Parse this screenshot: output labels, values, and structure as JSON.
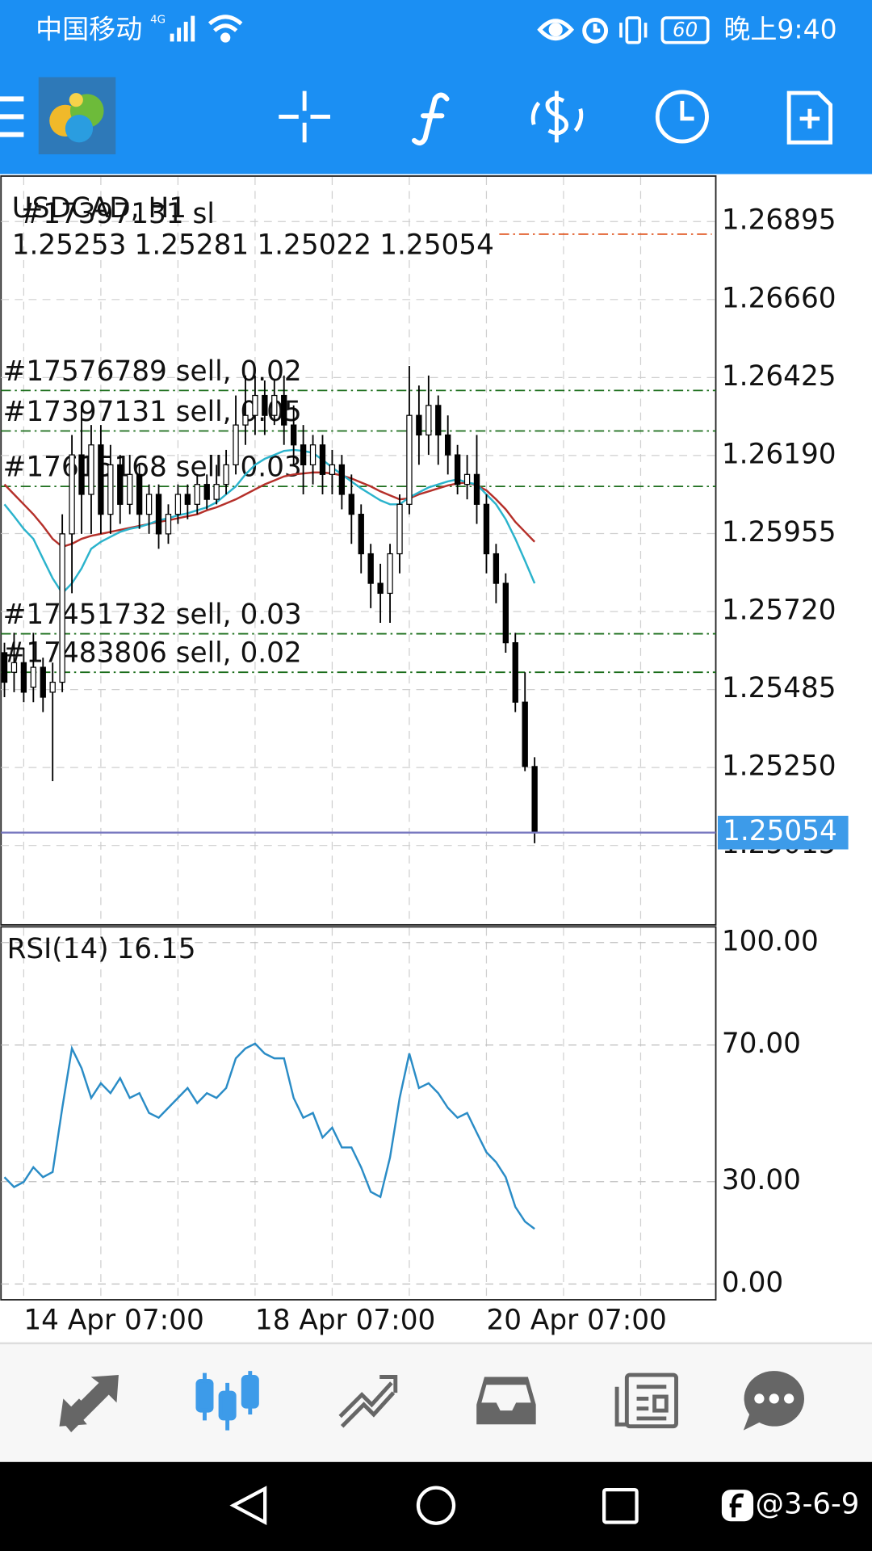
{
  "status_bar": {
    "carrier": "中国移动",
    "network": "4G",
    "battery": "60",
    "time": "晚上9:40"
  },
  "chart_data": [
    {
      "type": "candlestick",
      "title": "USDCAD, H1",
      "categories": [
        null,
        null,
        "14 Apr 07:00",
        null,
        null,
        null,
        null,
        null,
        null,
        null,
        null,
        null,
        null,
        null,
        null,
        null,
        null,
        null,
        null,
        null,
        null,
        null,
        null,
        null,
        null,
        null,
        "18 Apr 07:00",
        null,
        null,
        null,
        null,
        null,
        null,
        null,
        null,
        null,
        null,
        null,
        null,
        null,
        null,
        null,
        null,
        null,
        null,
        null,
        null,
        null,
        null,
        null,
        "20 Apr 07:00",
        null,
        null,
        null,
        null,
        null
      ],
      "open": [
        1.25596,
        1.25537,
        1.25566,
        1.25492,
        1.25552,
        1.25477,
        1.25507,
        1.25954,
        1.26192,
        1.26073,
        1.26222,
        1.26013,
        1.26162,
        1.26043,
        1.26133,
        1.26013,
        1.26073,
        1.25954,
        1.26013,
        1.26073,
        1.26043,
        1.26103,
        1.26058,
        1.26103,
        1.26162,
        1.26282,
        1.26311,
        1.26371,
        1.26311,
        1.26371,
        1.26282,
        1.26222,
        1.26162,
        1.26222,
        1.26133,
        1.26162,
        1.26073,
        1.26013,
        1.25894,
        1.25805,
        1.25775,
        1.25894,
        1.26043,
        1.26311,
        1.26252,
        1.26341,
        1.26252,
        1.26192,
        1.26103,
        1.26133,
        1.26043,
        1.25894,
        1.25805,
        1.25626,
        1.25447,
        1.25253
      ],
      "high": [
        1.25626,
        1.25656,
        1.25611,
        1.25656,
        1.25581,
        1.25566,
        1.26013,
        1.26252,
        1.26341,
        1.26282,
        1.26282,
        1.26222,
        1.26192,
        1.26192,
        1.26162,
        1.26103,
        1.26103,
        1.26043,
        1.26103,
        1.26103,
        1.26133,
        1.26133,
        1.26162,
        1.26207,
        1.26371,
        1.26431,
        1.26431,
        1.26416,
        1.26416,
        1.26431,
        1.26341,
        1.26282,
        1.26252,
        1.26252,
        1.26207,
        1.26192,
        1.26133,
        1.26043,
        1.25924,
        1.25864,
        1.25924,
        1.26073,
        1.2646,
        1.26401,
        1.26431,
        1.26371,
        1.26311,
        1.26222,
        1.26192,
        1.26252,
        1.26073,
        1.25924,
        1.25835,
        1.25656,
        1.25537,
        1.25281
      ],
      "low": [
        1.25462,
        1.25477,
        1.25447,
        1.25447,
        1.25417,
        1.25209,
        1.25477,
        1.25775,
        1.25954,
        1.25954,
        1.25954,
        1.25954,
        1.25984,
        1.26013,
        1.25969,
        1.25954,
        1.25909,
        1.25924,
        1.25984,
        1.25998,
        1.26013,
        1.26028,
        1.26043,
        1.26073,
        1.26133,
        1.26222,
        1.26252,
        1.26252,
        1.26282,
        1.26222,
        1.26162,
        1.26073,
        1.26103,
        1.26073,
        1.26073,
        1.26028,
        1.25924,
        1.25835,
        1.2573,
        1.25686,
        1.25686,
        1.25835,
        1.26013,
        1.26162,
        1.26192,
        1.26162,
        1.26133,
        1.26073,
        1.26058,
        1.25984,
        1.25835,
        1.25745,
        1.25596,
        1.25417,
        1.25239,
        1.25022
      ],
      "close": [
        1.25507,
        1.25566,
        1.25477,
        1.25552,
        1.25462,
        1.25507,
        1.25954,
        1.26192,
        1.26073,
        1.26222,
        1.26013,
        1.26162,
        1.26043,
        1.26133,
        1.26013,
        1.26073,
        1.25954,
        1.26013,
        1.26073,
        1.26043,
        1.26103,
        1.26058,
        1.26103,
        1.26162,
        1.26282,
        1.26311,
        1.26371,
        1.26311,
        1.26371,
        1.26282,
        1.26222,
        1.26162,
        1.26222,
        1.26133,
        1.26162,
        1.26073,
        1.26013,
        1.25894,
        1.25805,
        1.25775,
        1.25894,
        1.26043,
        1.26311,
        1.26252,
        1.26341,
        1.26252,
        1.26192,
        1.26103,
        1.26133,
        1.26043,
        1.25894,
        1.25805,
        1.25626,
        1.25447,
        1.25253,
        1.25054
      ],
      "series": [
        {
          "color": "#b5302a",
          "values": [
            1.26103,
            1.26073,
            1.26043,
            1.26013,
            1.25978,
            1.25939,
            1.25915,
            1.25924,
            1.25939,
            1.25948,
            1.25954,
            1.2596,
            1.25966,
            1.25972,
            1.25978,
            1.25984,
            1.2599,
            1.25995,
            1.26001,
            1.26007,
            1.26013,
            1.26025,
            1.26034,
            1.26046,
            1.26058,
            1.26073,
            1.26088,
            1.26103,
            1.26115,
            1.26127,
            1.26133,
            1.26136,
            1.26139,
            1.26139,
            1.26136,
            1.2613,
            1.26121,
            1.26109,
            1.26097,
            1.26082,
            1.2607,
            1.26058,
            1.26061,
            1.26073,
            1.26082,
            1.26091,
            1.261,
            1.26106,
            1.26109,
            1.261,
            1.26085,
            1.26058,
            1.26028,
            1.2599,
            1.2596,
            1.2593
          ]
        },
        {
          "color": "#2bb3cc",
          "values": [
            1.26043,
            1.26007,
            1.25969,
            1.25939,
            1.25879,
            1.2582,
            1.25775,
            1.25805,
            1.2585,
            1.25909,
            1.2593,
            1.25945,
            1.2596,
            1.25969,
            1.25975,
            1.25984,
            1.25995,
            1.26001,
            1.2601,
            1.26016,
            1.26025,
            1.26034,
            1.26049,
            1.26073,
            1.26097,
            1.26133,
            1.26162,
            1.2618,
            1.26192,
            1.26204,
            1.26207,
            1.26204,
            1.26198,
            1.26177,
            1.26154,
            1.26133,
            1.26112,
            1.26091,
            1.26073,
            1.26055,
            1.26043,
            1.26043,
            1.26064,
            1.26079,
            1.26094,
            1.26103,
            1.26112,
            1.26118,
            1.26109,
            1.26103,
            1.26073,
            1.26043,
            1.25998,
            1.25939,
            1.25873,
            1.25805
          ]
        }
      ],
      "orders": [
        {
          "label": "#17576789 sell, 0.02",
          "price": 1.26386,
          "color": "#1b6e1b"
        },
        {
          "label": "#17397131 sell, 0.05",
          "price": 1.26264,
          "color": "#1b6e1b"
        },
        {
          "label": "#17615168 sell, 0.03",
          "price": 1.26097,
          "color": "#1b6e1b"
        },
        {
          "label": "#17451732 sell, 0.03",
          "price": 1.25653,
          "color": "#1b6e1b"
        },
        {
          "label": "#17483806 sell, 0.02",
          "price": 1.25537,
          "color": "#1b6e1b"
        }
      ],
      "stop_loss": {
        "label": "#17397131 sl",
        "price": 1.26857,
        "color": "#e0541e"
      },
      "ylim": [
        1.24776,
        1.27032
      ],
      "yticks": [
        1.26895,
        {
          "value": 1.2666,
          "label": "1.26660"
        },
        1.26425,
        {
          "value": 1.2619,
          "label": "1.26190"
        },
        1.25955,
        {
          "value": 1.2572,
          "label": "1.25720"
        },
        1.25485,
        {
          "value": 1.2525,
          "label": "1.25250"
        },
        1.25015
      ],
      "grid": true
    },
    {
      "type": "line",
      "title": "RSI(14)",
      "color": "#2a8cc6",
      "values": [
        31.3,
        28.4,
        29.9,
        34.2,
        31.3,
        32.8,
        51.6,
        69.0,
        63.2,
        54.5,
        58.8,
        55.9,
        60.3,
        54.5,
        55.9,
        50.1,
        48.7,
        51.6,
        54.5,
        57.4,
        53.0,
        55.9,
        54.5,
        57.4,
        66.1,
        69.0,
        70.4,
        67.5,
        66.1,
        66.1,
        54.5,
        48.7,
        50.1,
        42.9,
        45.8,
        40.0,
        40.0,
        34.2,
        27.0,
        25.5,
        37.1,
        54.5,
        67.5,
        57.4,
        58.8,
        55.9,
        51.6,
        48.7,
        50.1,
        44.3,
        38.6,
        35.7,
        31.3,
        22.6,
        18.3,
        16.15
      ],
      "ylim": [
        -4.6,
        104.6
      ],
      "yticks": [
        {
          "value": 100,
          "label": "100.00"
        },
        {
          "value": 70,
          "label": "70.00"
        },
        {
          "value": 30,
          "label": "30.00"
        },
        {
          "value": 0,
          "label": "0.00"
        }
      ],
      "grid": true
    }
  ],
  "watermark": "@3-6-9"
}
